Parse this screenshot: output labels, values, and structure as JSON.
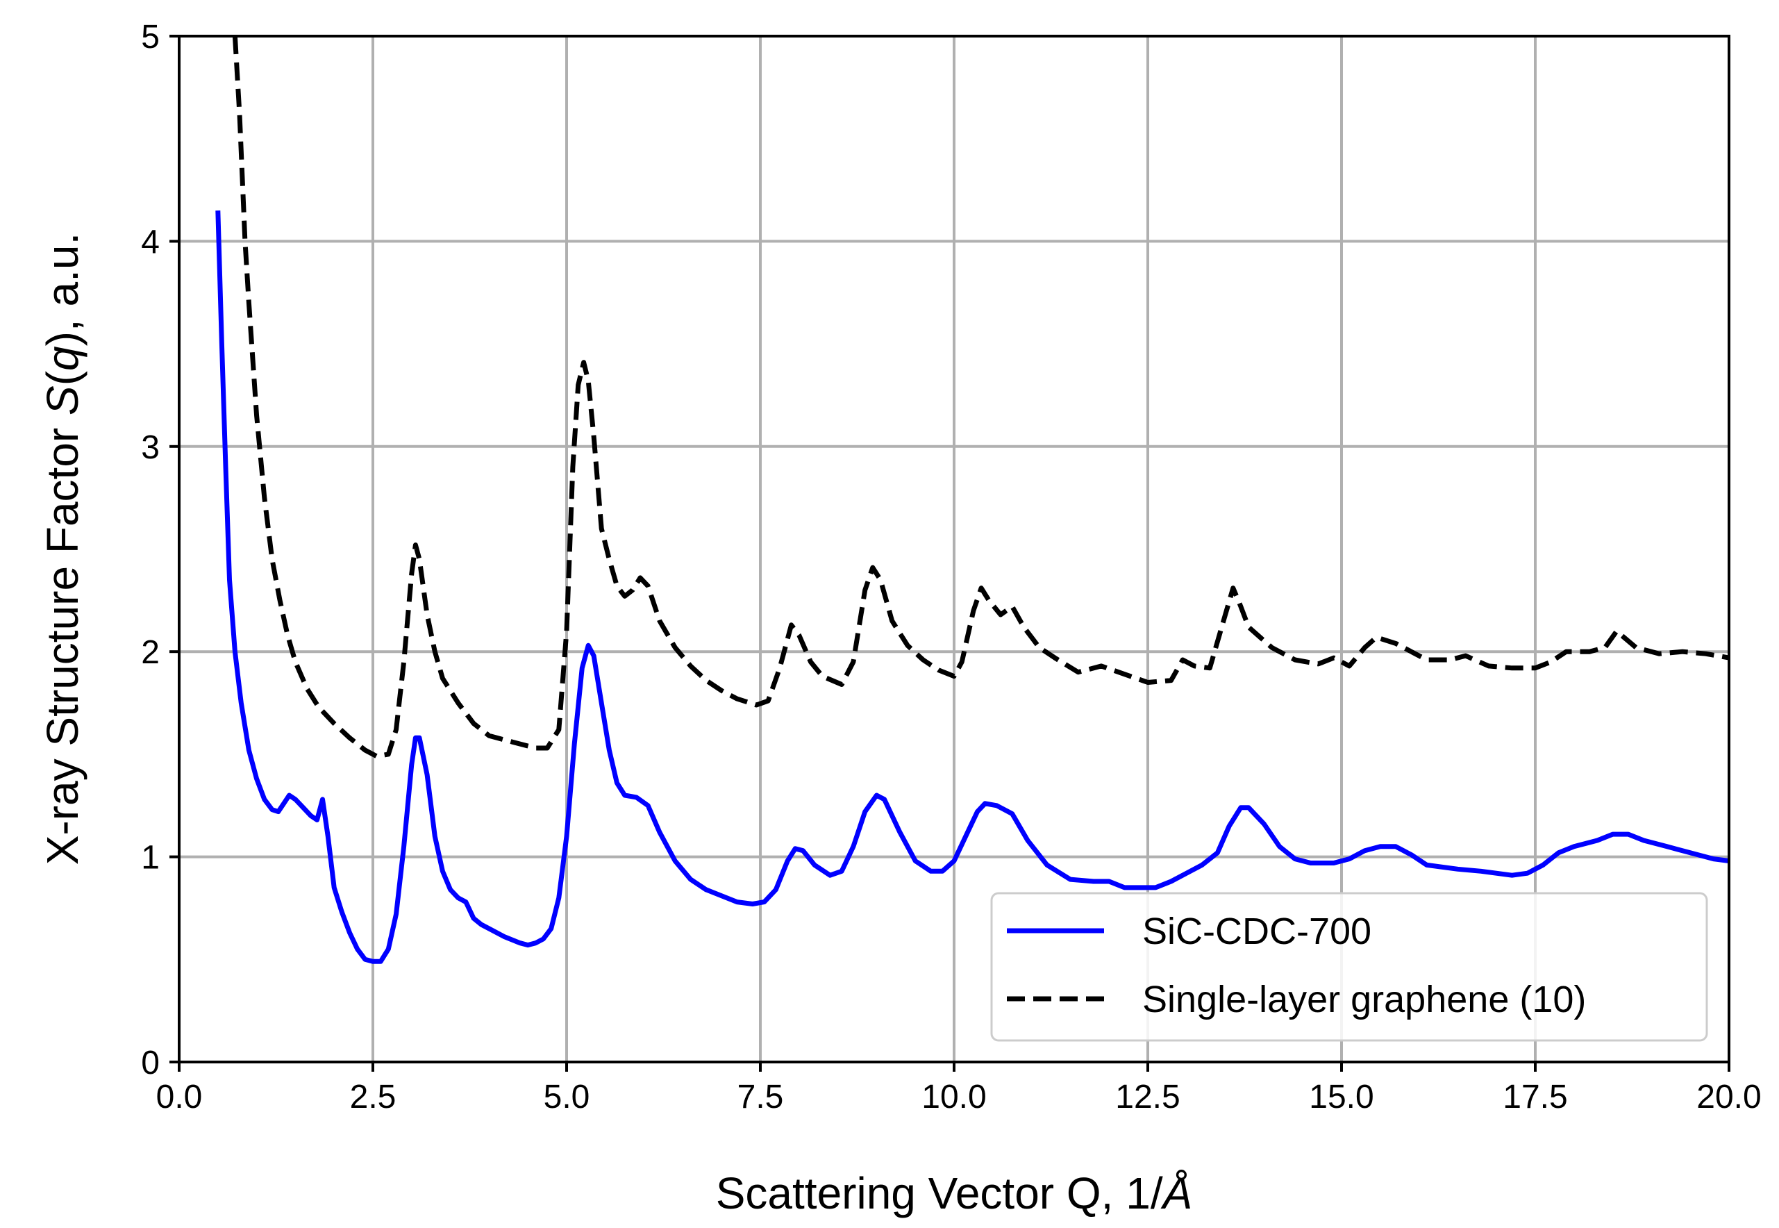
{
  "chart_data": {
    "type": "line",
    "title": "",
    "xlabel": "Scattering Vector Q, 1/Å",
    "xlabel_parts": [
      "Scattering Vector Q, 1/",
      "Å"
    ],
    "ylabel": "X-ray Structure Factor S(q), a.u.",
    "ylabel_parts": [
      "X-ray Structure Factor ",
      "S",
      "(",
      "q",
      "), a.u."
    ],
    "xlim": [
      0,
      20
    ],
    "ylim": [
      0,
      5
    ],
    "xticks": [
      0,
      2.5,
      5,
      7.5,
      10,
      12.5,
      15,
      17.5,
      20
    ],
    "xtick_labels": [
      "0.0",
      "2.5",
      "5.0",
      "7.5",
      "10.0",
      "12.5",
      "15.0",
      "17.5",
      "20.0"
    ],
    "yticks": [
      0,
      1,
      2,
      3,
      4,
      5
    ],
    "ytick_labels": [
      "0",
      "1",
      "2",
      "3",
      "4",
      "5"
    ],
    "grid": true,
    "legend_position": "bottom-right",
    "series": [
      {
        "name": "SiC-CDC-700",
        "color": "#0000ff",
        "style": "solid",
        "points": [
          [
            0.5,
            4.15
          ],
          [
            0.55,
            3.5
          ],
          [
            0.6,
            2.9
          ],
          [
            0.65,
            2.35
          ],
          [
            0.72,
            2.0
          ],
          [
            0.8,
            1.75
          ],
          [
            0.9,
            1.52
          ],
          [
            1.0,
            1.38
          ],
          [
            1.1,
            1.28
          ],
          [
            1.2,
            1.23
          ],
          [
            1.28,
            1.22
          ],
          [
            1.35,
            1.26
          ],
          [
            1.42,
            1.3
          ],
          [
            1.5,
            1.28
          ],
          [
            1.6,
            1.24
          ],
          [
            1.7,
            1.2
          ],
          [
            1.78,
            1.18
          ],
          [
            1.85,
            1.28
          ],
          [
            1.92,
            1.1
          ],
          [
            2.0,
            0.85
          ],
          [
            2.1,
            0.73
          ],
          [
            2.2,
            0.63
          ],
          [
            2.3,
            0.55
          ],
          [
            2.4,
            0.5
          ],
          [
            2.5,
            0.49
          ],
          [
            2.6,
            0.49
          ],
          [
            2.7,
            0.55
          ],
          [
            2.8,
            0.72
          ],
          [
            2.9,
            1.05
          ],
          [
            3.0,
            1.45
          ],
          [
            3.05,
            1.58
          ],
          [
            3.1,
            1.58
          ],
          [
            3.2,
            1.4
          ],
          [
            3.3,
            1.1
          ],
          [
            3.4,
            0.93
          ],
          [
            3.5,
            0.84
          ],
          [
            3.6,
            0.8
          ],
          [
            3.7,
            0.78
          ],
          [
            3.8,
            0.7
          ],
          [
            3.9,
            0.67
          ],
          [
            4.0,
            0.65
          ],
          [
            4.2,
            0.61
          ],
          [
            4.4,
            0.58
          ],
          [
            4.5,
            0.57
          ],
          [
            4.6,
            0.58
          ],
          [
            4.7,
            0.6
          ],
          [
            4.8,
            0.65
          ],
          [
            4.9,
            0.8
          ],
          [
            5.0,
            1.1
          ],
          [
            5.1,
            1.55
          ],
          [
            5.2,
            1.92
          ],
          [
            5.28,
            2.03
          ],
          [
            5.35,
            1.98
          ],
          [
            5.45,
            1.75
          ],
          [
            5.55,
            1.52
          ],
          [
            5.65,
            1.36
          ],
          [
            5.75,
            1.3
          ],
          [
            5.9,
            1.29
          ],
          [
            6.05,
            1.25
          ],
          [
            6.2,
            1.12
          ],
          [
            6.4,
            0.98
          ],
          [
            6.6,
            0.89
          ],
          [
            6.8,
            0.84
          ],
          [
            7.0,
            0.81
          ],
          [
            7.2,
            0.78
          ],
          [
            7.4,
            0.77
          ],
          [
            7.55,
            0.78
          ],
          [
            7.7,
            0.84
          ],
          [
            7.85,
            0.98
          ],
          [
            7.95,
            1.04
          ],
          [
            8.05,
            1.03
          ],
          [
            8.2,
            0.96
          ],
          [
            8.4,
            0.91
          ],
          [
            8.55,
            0.93
          ],
          [
            8.7,
            1.05
          ],
          [
            8.85,
            1.22
          ],
          [
            9.0,
            1.3
          ],
          [
            9.1,
            1.28
          ],
          [
            9.3,
            1.12
          ],
          [
            9.5,
            0.98
          ],
          [
            9.7,
            0.93
          ],
          [
            9.85,
            0.93
          ],
          [
            10.0,
            0.98
          ],
          [
            10.15,
            1.1
          ],
          [
            10.3,
            1.22
          ],
          [
            10.4,
            1.26
          ],
          [
            10.55,
            1.25
          ],
          [
            10.75,
            1.21
          ],
          [
            10.95,
            1.08
          ],
          [
            11.2,
            0.96
          ],
          [
            11.5,
            0.89
          ],
          [
            11.8,
            0.88
          ],
          [
            12.0,
            0.88
          ],
          [
            12.2,
            0.85
          ],
          [
            12.6,
            0.85
          ],
          [
            12.8,
            0.88
          ],
          [
            13.0,
            0.92
          ],
          [
            13.2,
            0.96
          ],
          [
            13.4,
            1.02
          ],
          [
            13.55,
            1.15
          ],
          [
            13.7,
            1.24
          ],
          [
            13.8,
            1.24
          ],
          [
            14.0,
            1.16
          ],
          [
            14.2,
            1.05
          ],
          [
            14.4,
            0.99
          ],
          [
            14.6,
            0.97
          ],
          [
            14.9,
            0.97
          ],
          [
            15.1,
            0.99
          ],
          [
            15.3,
            1.03
          ],
          [
            15.5,
            1.05
          ],
          [
            15.7,
            1.05
          ],
          [
            15.9,
            1.01
          ],
          [
            16.1,
            0.96
          ],
          [
            16.5,
            0.94
          ],
          [
            16.8,
            0.93
          ],
          [
            17.2,
            0.91
          ],
          [
            17.4,
            0.92
          ],
          [
            17.6,
            0.96
          ],
          [
            17.8,
            1.02
          ],
          [
            18.0,
            1.05
          ],
          [
            18.3,
            1.08
          ],
          [
            18.5,
            1.11
          ],
          [
            18.7,
            1.11
          ],
          [
            18.9,
            1.08
          ],
          [
            19.2,
            1.05
          ],
          [
            19.5,
            1.02
          ],
          [
            19.8,
            0.99
          ],
          [
            20.0,
            0.98
          ]
        ]
      },
      {
        "name": "Single-layer graphene (10)",
        "color": "#000000",
        "style": "dashed",
        "points": [
          [
            0.72,
            5.0
          ],
          [
            0.78,
            4.62
          ],
          [
            0.85,
            4.0
          ],
          [
            0.9,
            3.7
          ],
          [
            1.0,
            3.15
          ],
          [
            1.1,
            2.75
          ],
          [
            1.2,
            2.45
          ],
          [
            1.3,
            2.25
          ],
          [
            1.4,
            2.08
          ],
          [
            1.5,
            1.95
          ],
          [
            1.65,
            1.82
          ],
          [
            1.8,
            1.73
          ],
          [
            2.0,
            1.65
          ],
          [
            2.2,
            1.58
          ],
          [
            2.4,
            1.52
          ],
          [
            2.55,
            1.49
          ],
          [
            2.7,
            1.5
          ],
          [
            2.8,
            1.62
          ],
          [
            2.9,
            1.95
          ],
          [
            3.0,
            2.38
          ],
          [
            3.05,
            2.52
          ],
          [
            3.1,
            2.45
          ],
          [
            3.2,
            2.18
          ],
          [
            3.3,
            2.0
          ],
          [
            3.4,
            1.87
          ],
          [
            3.6,
            1.75
          ],
          [
            3.8,
            1.65
          ],
          [
            4.0,
            1.59
          ],
          [
            4.3,
            1.56
          ],
          [
            4.6,
            1.53
          ],
          [
            4.75,
            1.53
          ],
          [
            4.9,
            1.62
          ],
          [
            5.0,
            2.1
          ],
          [
            5.08,
            2.9
          ],
          [
            5.15,
            3.3
          ],
          [
            5.22,
            3.41
          ],
          [
            5.28,
            3.32
          ],
          [
            5.35,
            3.05
          ],
          [
            5.45,
            2.6
          ],
          [
            5.55,
            2.45
          ],
          [
            5.65,
            2.32
          ],
          [
            5.75,
            2.27
          ],
          [
            5.85,
            2.3
          ],
          [
            5.95,
            2.36
          ],
          [
            6.05,
            2.32
          ],
          [
            6.2,
            2.15
          ],
          [
            6.4,
            2.02
          ],
          [
            6.6,
            1.93
          ],
          [
            6.8,
            1.86
          ],
          [
            7.0,
            1.81
          ],
          [
            7.2,
            1.77
          ],
          [
            7.45,
            1.74
          ],
          [
            7.6,
            1.76
          ],
          [
            7.75,
            1.92
          ],
          [
            7.9,
            2.13
          ],
          [
            8.0,
            2.08
          ],
          [
            8.15,
            1.95
          ],
          [
            8.3,
            1.88
          ],
          [
            8.55,
            1.84
          ],
          [
            8.7,
            1.95
          ],
          [
            8.85,
            2.3
          ],
          [
            8.95,
            2.41
          ],
          [
            9.05,
            2.35
          ],
          [
            9.2,
            2.15
          ],
          [
            9.4,
            2.03
          ],
          [
            9.6,
            1.96
          ],
          [
            9.8,
            1.91
          ],
          [
            10.0,
            1.88
          ],
          [
            10.1,
            1.95
          ],
          [
            10.25,
            2.2
          ],
          [
            10.35,
            2.31
          ],
          [
            10.45,
            2.25
          ],
          [
            10.6,
            2.18
          ],
          [
            10.75,
            2.22
          ],
          [
            10.9,
            2.12
          ],
          [
            11.1,
            2.02
          ],
          [
            11.3,
            1.97
          ],
          [
            11.6,
            1.9
          ],
          [
            11.9,
            1.93
          ],
          [
            12.2,
            1.89
          ],
          [
            12.5,
            1.85
          ],
          [
            12.8,
            1.86
          ],
          [
            12.95,
            1.96
          ],
          [
            13.1,
            1.93
          ],
          [
            13.3,
            1.92
          ],
          [
            13.5,
            2.18
          ],
          [
            13.6,
            2.31
          ],
          [
            13.7,
            2.22
          ],
          [
            13.8,
            2.12
          ],
          [
            14.1,
            2.02
          ],
          [
            14.4,
            1.96
          ],
          [
            14.7,
            1.94
          ],
          [
            14.9,
            1.97
          ],
          [
            15.1,
            1.93
          ],
          [
            15.3,
            2.02
          ],
          [
            15.45,
            2.07
          ],
          [
            15.7,
            2.04
          ],
          [
            15.9,
            2.0
          ],
          [
            16.1,
            1.96
          ],
          [
            16.4,
            1.96
          ],
          [
            16.6,
            1.98
          ],
          [
            16.9,
            1.93
          ],
          [
            17.2,
            1.92
          ],
          [
            17.5,
            1.92
          ],
          [
            17.7,
            1.95
          ],
          [
            17.9,
            2.0
          ],
          [
            18.2,
            2.0
          ],
          [
            18.4,
            2.02
          ],
          [
            18.55,
            2.1
          ],
          [
            18.8,
            2.02
          ],
          [
            19.1,
            1.99
          ],
          [
            19.4,
            2.0
          ],
          [
            19.7,
            1.99
          ],
          [
            20.0,
            1.97
          ]
        ]
      }
    ]
  }
}
